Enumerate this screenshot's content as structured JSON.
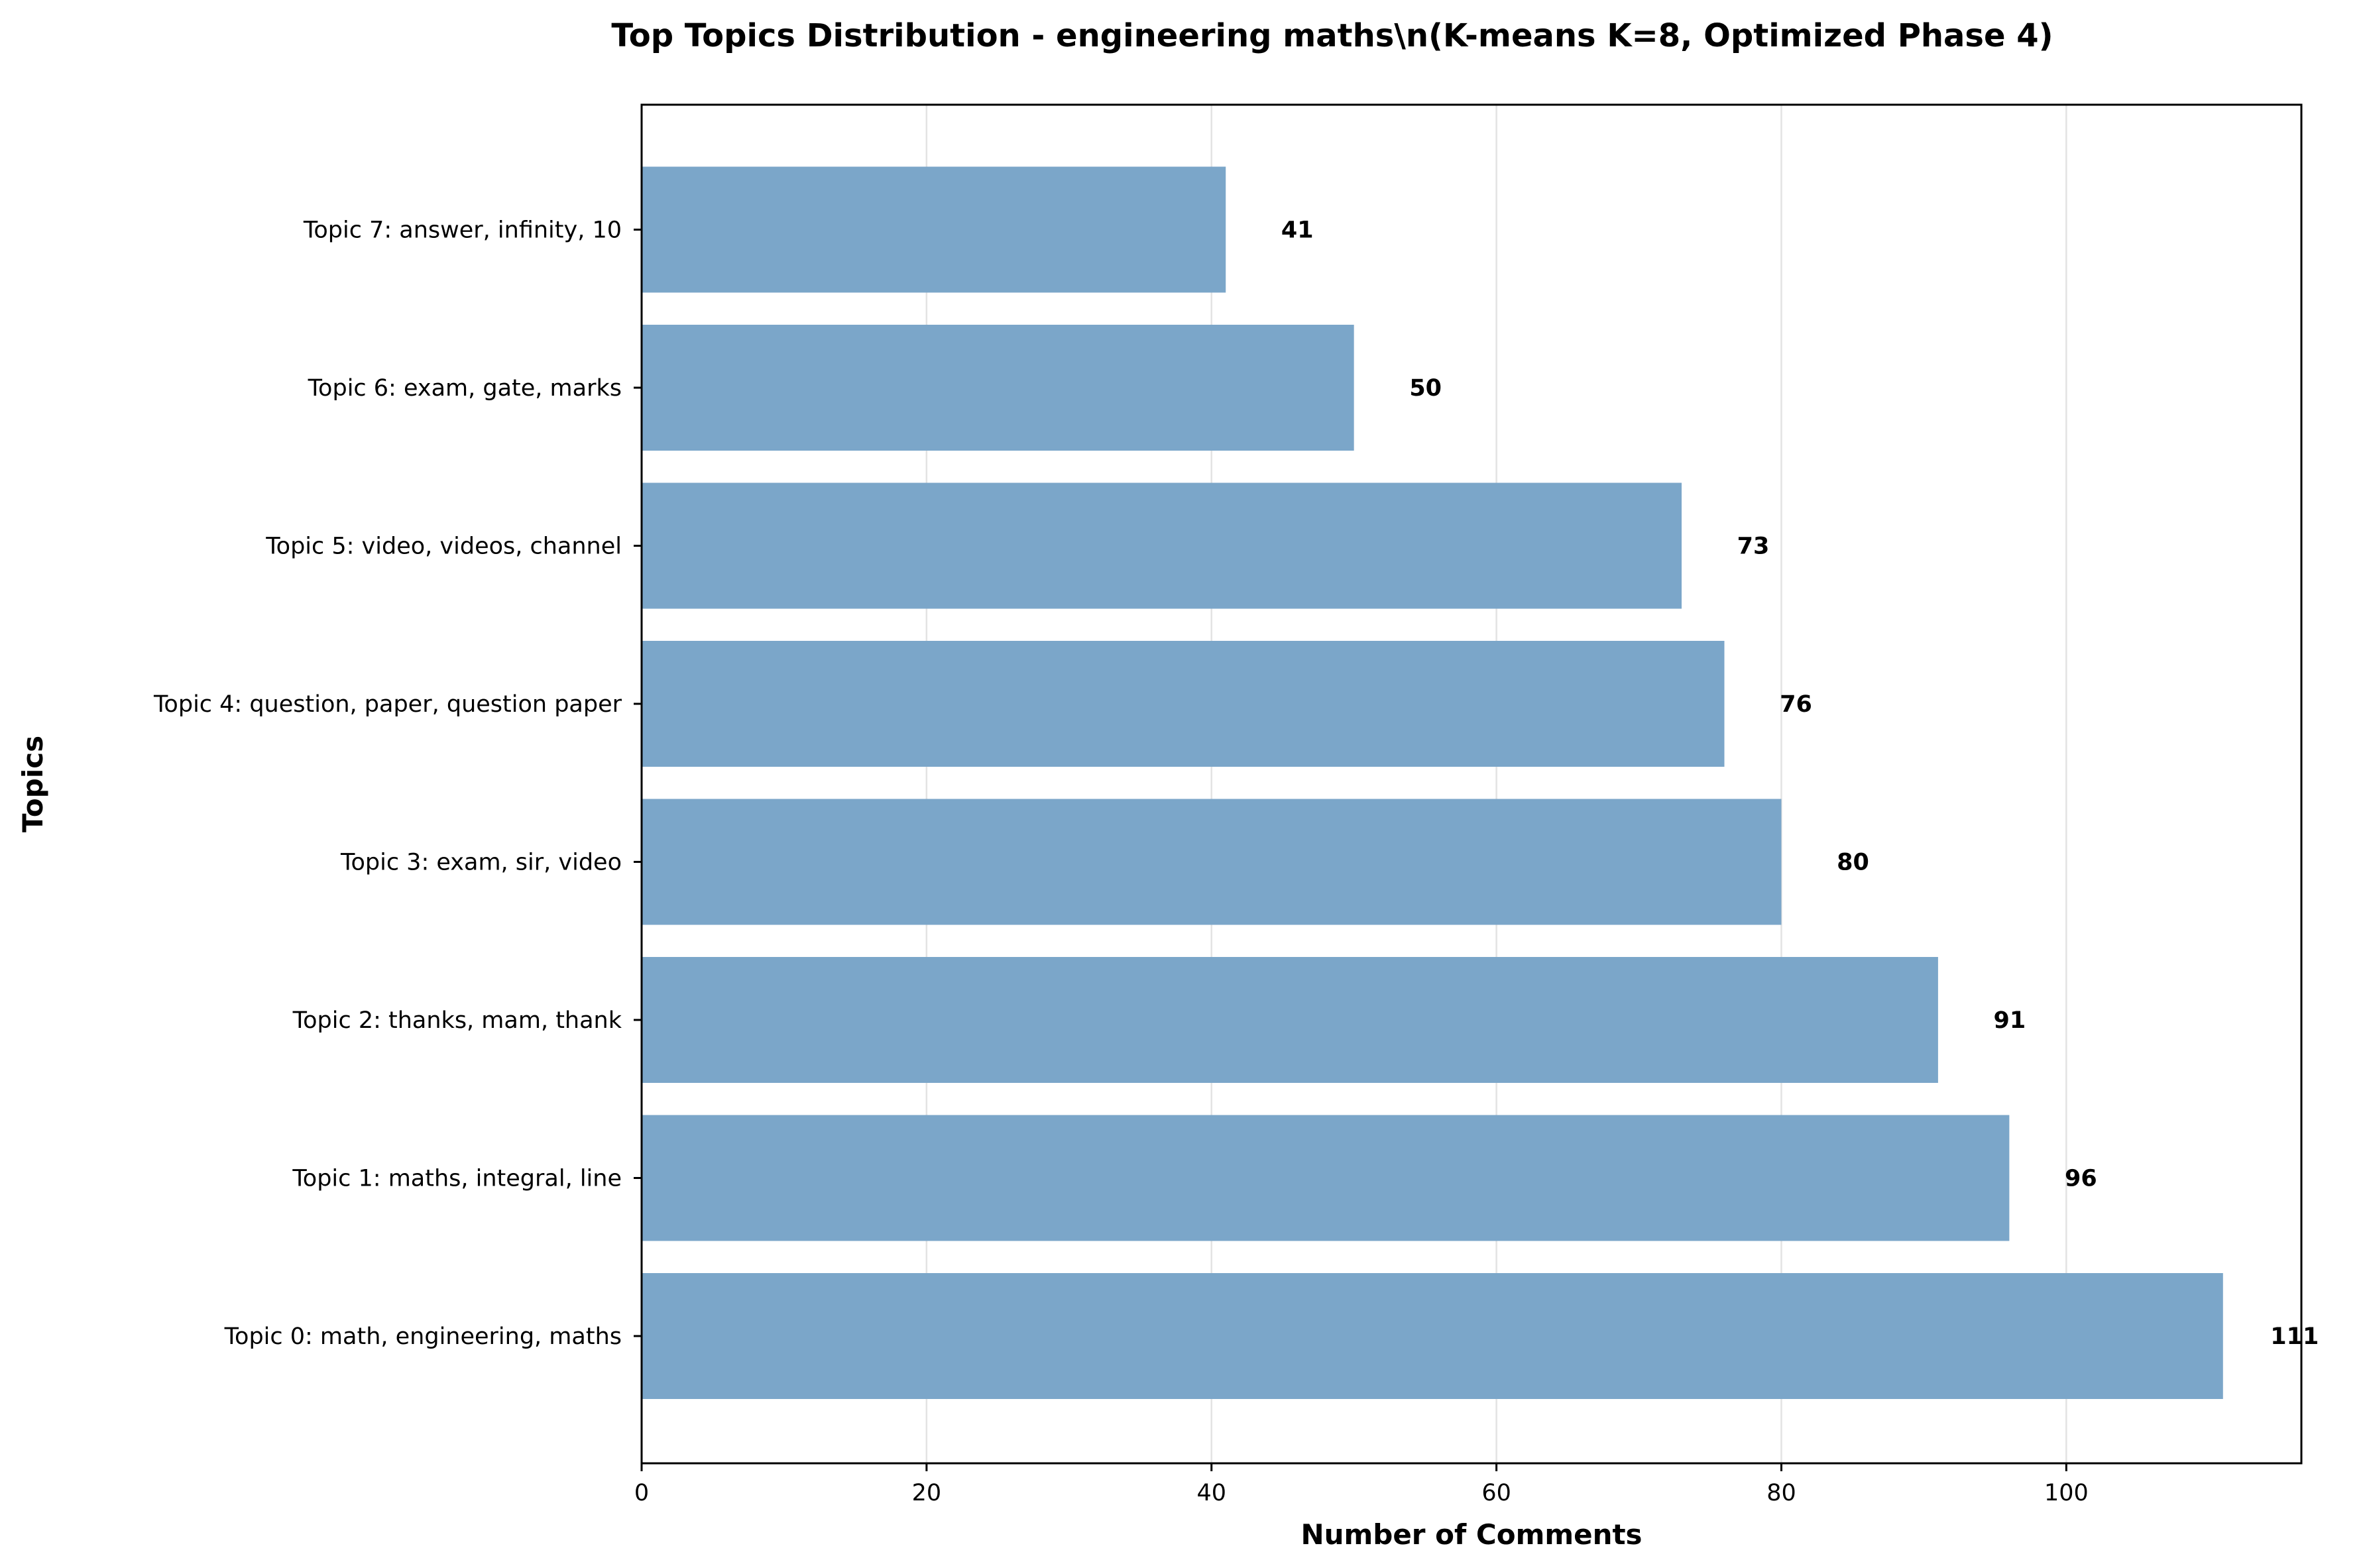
{
  "chart_data": {
    "type": "bar",
    "orientation": "horizontal",
    "title": "Top Topics Distribution - engineering maths\\n(K-means K=8, Optimized Phase 4)",
    "xlabel": "Number of Comments",
    "ylabel": "Topics",
    "xlim": [
      0,
      116.5
    ],
    "xticks": [
      0,
      20,
      40,
      60,
      80,
      100
    ],
    "grid": "x",
    "bar_color": "#7ba6c9",
    "categories": [
      "Topic 0: math, engineering, maths",
      "Topic 1: maths, integral, line",
      "Topic 2: thanks, mam, thank",
      "Topic 3: exam, sir, video",
      "Topic 4: question, paper, question paper",
      "Topic 5: video, videos, channel",
      "Topic 6: exam, gate, marks",
      "Topic 7: answer, infinity, 10"
    ],
    "values": [
      111,
      96,
      91,
      80,
      76,
      73,
      50,
      41
    ]
  }
}
